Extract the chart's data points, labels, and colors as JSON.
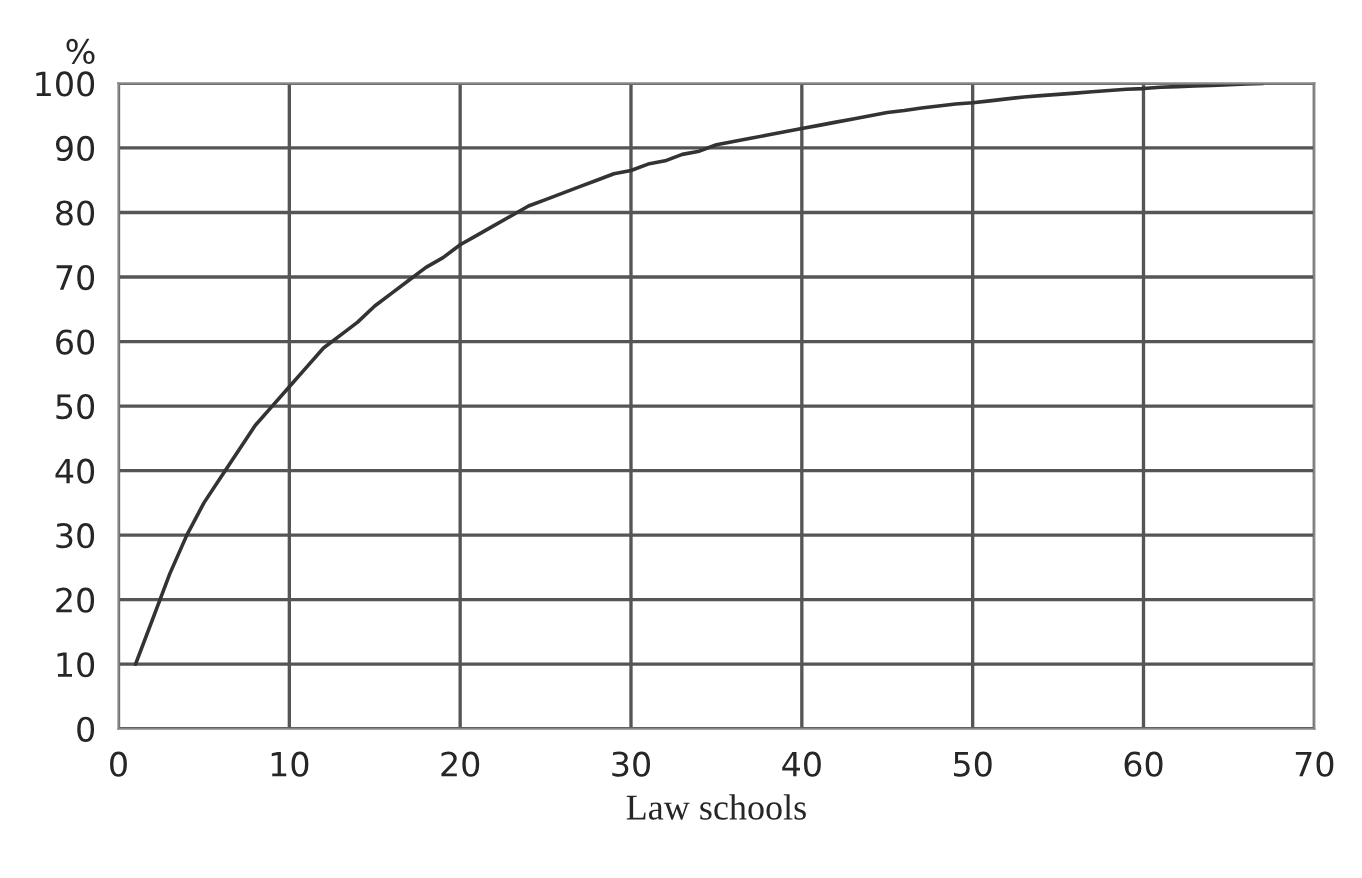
{
  "chart_data": {
    "type": "line",
    "xlabel": "Law schools",
    "ylabel": "%",
    "x": [
      1,
      2,
      3,
      4,
      5,
      6,
      7,
      8,
      9,
      10,
      11,
      12,
      13,
      14,
      15,
      16,
      17,
      18,
      19,
      20,
      21,
      22,
      23,
      24,
      25,
      26,
      27,
      28,
      29,
      30,
      31,
      32,
      33,
      34,
      35,
      36,
      37,
      38,
      39,
      40,
      41,
      42,
      43,
      44,
      45,
      46,
      47,
      48,
      49,
      50,
      51,
      52,
      53,
      54,
      55,
      56,
      57,
      58,
      59,
      60,
      61,
      62,
      63,
      64,
      65,
      66,
      67
    ],
    "series": [
      {
        "color": "#333333",
        "values": [
          10,
          17,
          24,
          30,
          35,
          39,
          43,
          47,
          50,
          53,
          56,
          59,
          61,
          63,
          65.5,
          67.5,
          69.5,
          71.5,
          73,
          75,
          76.5,
          78,
          79.5,
          81,
          82,
          83,
          84,
          85,
          86,
          86.5,
          87.5,
          88,
          89,
          89.5,
          90.5,
          91,
          91.5,
          92,
          92.5,
          93,
          93.5,
          94,
          94.5,
          95,
          95.5,
          95.8,
          96.2,
          96.5,
          96.8,
          97,
          97.3,
          97.6,
          97.9,
          98.1,
          98.3,
          98.5,
          98.7,
          98.9,
          99.1,
          99.2,
          99.4,
          99.5,
          99.6,
          99.7,
          99.8,
          99.9,
          100
        ]
      }
    ],
    "xlim": [
      0,
      70
    ],
    "ylim": [
      0,
      100
    ],
    "xticks": [
      0,
      10,
      20,
      30,
      40,
      50,
      60,
      70
    ],
    "yticks": [
      0,
      10,
      20,
      30,
      40,
      50,
      60,
      70,
      80,
      90,
      100
    ],
    "grid": true,
    "marker": "none",
    "line_style": "solid",
    "legend": false
  }
}
